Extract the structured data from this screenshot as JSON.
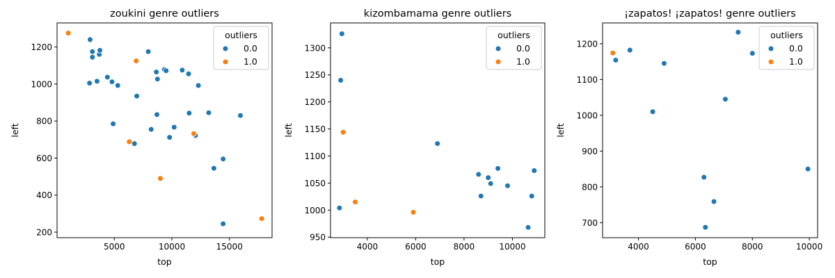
{
  "chart_data": [
    {
      "type": "scatter",
      "title": "zoukini genre outliers",
      "xlabel": "top",
      "ylabel": "left",
      "xlim": [
        30,
        18700
      ],
      "ylim": [
        170,
        1330
      ],
      "xticks": [
        5000,
        10000,
        15000
      ],
      "yticks": [
        200,
        400,
        600,
        800,
        1000,
        1200
      ],
      "grid": false,
      "legend": {
        "title": "outliers",
        "placement": "top-right",
        "entries": [
          "0.0",
          "1.0"
        ]
      },
      "series": [
        {
          "name": "0.0",
          "color": "#1f77b4",
          "points": [
            [
              2900,
              1240
            ],
            [
              3100,
              1175
            ],
            [
              3100,
              1145
            ],
            [
              3700,
              1160
            ],
            [
              3750,
              1182
            ],
            [
              2850,
              1005
            ],
            [
              3500,
              1015
            ],
            [
              4400,
              1037
            ],
            [
              4800,
              1012
            ],
            [
              5300,
              992
            ],
            [
              4900,
              785
            ],
            [
              6750,
              678
            ],
            [
              6950,
              935
            ],
            [
              7950,
              1175
            ],
            [
              8650,
              1065
            ],
            [
              8750,
              1027
            ],
            [
              8700,
              835
            ],
            [
              8200,
              755
            ],
            [
              9350,
              1078
            ],
            [
              9500,
              1072
            ],
            [
              9800,
              712
            ],
            [
              10200,
              767
            ],
            [
              10900,
              1075
            ],
            [
              11450,
              1055
            ],
            [
              11500,
              843
            ],
            [
              12050,
              722
            ],
            [
              12300,
              992
            ],
            [
              13200,
              845
            ],
            [
              13650,
              545
            ],
            [
              14450,
              595
            ],
            [
              14450,
              245
            ],
            [
              15950,
              830
            ]
          ]
        },
        {
          "name": "1.0",
          "color": "#ff7f0e",
          "points": [
            [
              1000,
              1275
            ],
            [
              6900,
              1125
            ],
            [
              6300,
              688
            ],
            [
              9000,
              490
            ],
            [
              11900,
              732
            ],
            [
              17800,
              273
            ]
          ]
        }
      ]
    },
    {
      "type": "scatter",
      "title": "kizombamama genre outliers",
      "xlabel": "top",
      "ylabel": "left",
      "xlim": [
        2480,
        11340
      ],
      "ylim": [
        949,
        1346
      ],
      "xticks": [
        4000,
        6000,
        8000,
        10000
      ],
      "yticks": [
        950,
        1000,
        1050,
        1100,
        1150,
        1200,
        1250,
        1300
      ],
      "grid": false,
      "legend": {
        "title": "outliers",
        "placement": "top-right",
        "entries": [
          "0.0",
          "1.0"
        ]
      },
      "series": [
        {
          "name": "0.0",
          "color": "#1f77b4",
          "points": [
            [
              2950,
              1326
            ],
            [
              2900,
              1240
            ],
            [
              2850,
              1004
            ],
            [
              6900,
              1123
            ],
            [
              8600,
              1066
            ],
            [
              8700,
              1026
            ],
            [
              9000,
              1060
            ],
            [
              9100,
              1049
            ],
            [
              9400,
              1077
            ],
            [
              9800,
              1045
            ],
            [
              10650,
              968
            ],
            [
              10800,
              1026
            ],
            [
              10900,
              1073
            ]
          ]
        },
        {
          "name": "1.0",
          "color": "#ff7f0e",
          "points": [
            [
              3000,
              1144
            ],
            [
              3500,
              1015
            ],
            [
              5900,
              996
            ]
          ]
        }
      ]
    },
    {
      "type": "scatter",
      "title": "¡zapatos! ¡zapatos! genre outliers",
      "xlabel": "top",
      "ylabel": "left",
      "xlim": [
        2740,
        10290
      ],
      "ylim": [
        658,
        1258
      ],
      "xticks": [
        4000,
        6000,
        8000,
        10000
      ],
      "yticks": [
        700,
        800,
        900,
        1000,
        1100,
        1200
      ],
      "grid": false,
      "legend": {
        "title": "outliers",
        "placement": "top-right",
        "entries": [
          "0.0",
          "1.0"
        ]
      },
      "series": [
        {
          "name": "0.0",
          "color": "#1f77b4",
          "points": [
            [
              3200,
              1154
            ],
            [
              3700,
              1182
            ],
            [
              4500,
              1010
            ],
            [
              4900,
              1145
            ],
            [
              6300,
              827
            ],
            [
              6350,
              687
            ],
            [
              6650,
              759
            ],
            [
              7050,
              1045
            ],
            [
              7500,
              1232
            ],
            [
              8000,
              1173
            ],
            [
              9950,
              850
            ]
          ]
        },
        {
          "name": "1.0",
          "color": "#ff7f0e",
          "points": [
            [
              3100,
              1174
            ]
          ]
        }
      ]
    }
  ]
}
